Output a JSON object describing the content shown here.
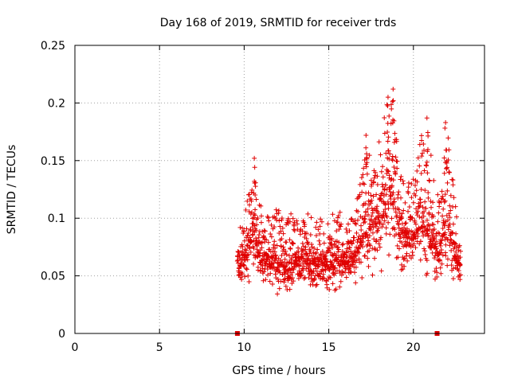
{
  "chart_data": {
    "type": "scatter",
    "title": "Day 168 of 2019, SRMTID for receiver trds",
    "xlabel": "GPS time / hours",
    "ylabel": "SRMTID / TECUs",
    "xlim": [
      0,
      24.2
    ],
    "ylim": [
      0,
      0.25
    ],
    "xticks": [
      0,
      5,
      10,
      15,
      20
    ],
    "xtick_labels": [
      "0",
      "5",
      "10",
      "15",
      "20"
    ],
    "yticks": [
      0,
      0.05,
      0.1,
      0.15,
      0.2,
      0.25
    ],
    "ytick_labels": [
      "0",
      "0.05",
      "0.1",
      "0.15",
      "0.2",
      "0.25"
    ],
    "grid": true,
    "marker": "plus",
    "color": "#e00000",
    "data_range_hours": [
      9.6,
      22.8
    ],
    "range_markers": [
      {
        "x": 9.6,
        "y": 0
      },
      {
        "x": 21.4,
        "y": 0
      }
    ],
    "density_profile": [
      {
        "x": 9.6,
        "low": 0.035,
        "high": 0.09
      },
      {
        "x": 10.0,
        "low": 0.035,
        "high": 0.1
      },
      {
        "x": 10.5,
        "low": 0.04,
        "high": 0.15
      },
      {
        "x": 11.0,
        "low": 0.035,
        "high": 0.11
      },
      {
        "x": 11.5,
        "low": 0.035,
        "high": 0.1
      },
      {
        "x": 12.0,
        "low": 0.03,
        "high": 0.11
      },
      {
        "x": 12.5,
        "low": 0.025,
        "high": 0.1
      },
      {
        "x": 13.0,
        "low": 0.025,
        "high": 0.11
      },
      {
        "x": 13.5,
        "low": 0.03,
        "high": 0.11
      },
      {
        "x": 14.0,
        "low": 0.035,
        "high": 0.1
      },
      {
        "x": 14.5,
        "low": 0.035,
        "high": 0.1
      },
      {
        "x": 15.0,
        "low": 0.03,
        "high": 0.1
      },
      {
        "x": 15.5,
        "low": 0.03,
        "high": 0.11
      },
      {
        "x": 16.0,
        "low": 0.035,
        "high": 0.1
      },
      {
        "x": 16.5,
        "low": 0.04,
        "high": 0.1
      },
      {
        "x": 17.0,
        "low": 0.04,
        "high": 0.15
      },
      {
        "x": 17.5,
        "low": 0.045,
        "high": 0.16
      },
      {
        "x": 18.0,
        "low": 0.05,
        "high": 0.17
      },
      {
        "x": 18.5,
        "low": 0.05,
        "high": 0.205
      },
      {
        "x": 19.0,
        "low": 0.045,
        "high": 0.19
      },
      {
        "x": 19.5,
        "low": 0.04,
        "high": 0.13
      },
      {
        "x": 20.0,
        "low": 0.04,
        "high": 0.15
      },
      {
        "x": 20.5,
        "low": 0.04,
        "high": 0.18
      },
      {
        "x": 21.0,
        "low": 0.035,
        "high": 0.16
      },
      {
        "x": 21.5,
        "low": 0.035,
        "high": 0.12
      },
      {
        "x": 22.0,
        "low": 0.035,
        "high": 0.18
      },
      {
        "x": 22.5,
        "low": 0.035,
        "high": 0.11
      },
      {
        "x": 22.8,
        "low": 0.04,
        "high": 0.08
      }
    ],
    "peaks": [
      {
        "x": 10.6,
        "y": 0.152
      },
      {
        "x": 18.5,
        "y": 0.205
      },
      {
        "x": 18.8,
        "y": 0.212
      },
      {
        "x": 20.8,
        "y": 0.187
      },
      {
        "x": 21.9,
        "y": 0.183
      },
      {
        "x": 17.2,
        "y": 0.172
      }
    ]
  }
}
